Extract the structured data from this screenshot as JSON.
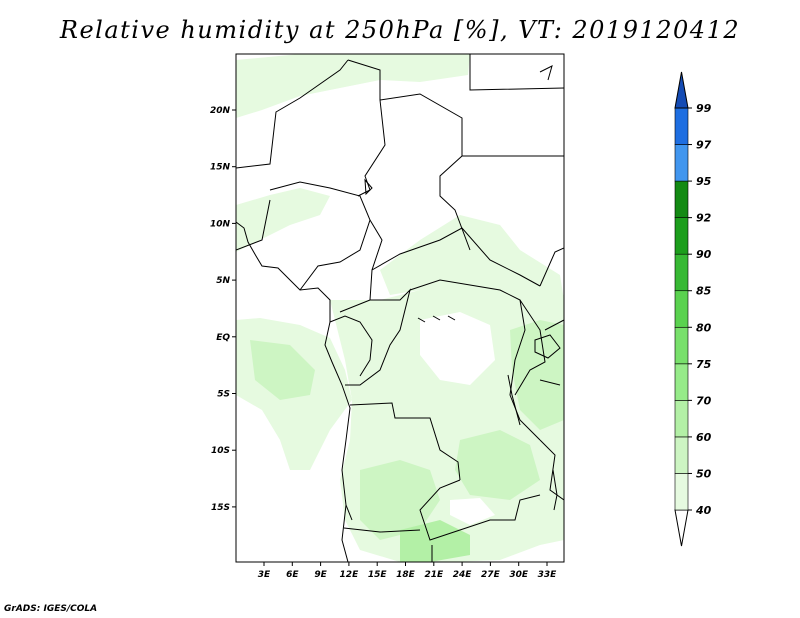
{
  "title": "Relative humidity at 250hPa [%], VT: 2019120412",
  "credit": "GrADS: IGES/COLA",
  "lat_labels": [
    "20N",
    "15N",
    "10N",
    "5N",
    "EQ",
    "5S",
    "10S",
    "15S"
  ],
  "lon_labels": [
    "3E",
    "6E",
    "9E",
    "12E",
    "15E",
    "18E",
    "21E",
    "24E",
    "27E",
    "30E",
    "33E"
  ],
  "colorbar": {
    "labels": [
      "40",
      "50",
      "60",
      "70",
      "75",
      "80",
      "85",
      "90",
      "92",
      "95",
      "97",
      "99"
    ],
    "colors": [
      "#ffffff",
      "#e6fae0",
      "#cdf5c3",
      "#b3f0a6",
      "#96eb89",
      "#78e06b",
      "#5ad24f",
      "#37b934",
      "#1c9e1c",
      "#138a13",
      "#4196ef",
      "#1e6ee1",
      "#144bb4"
    ]
  },
  "fill_colors": {
    "light": "#e6fae0",
    "mid": "#cdf5c3",
    "dark": "#b3f0a6"
  }
}
